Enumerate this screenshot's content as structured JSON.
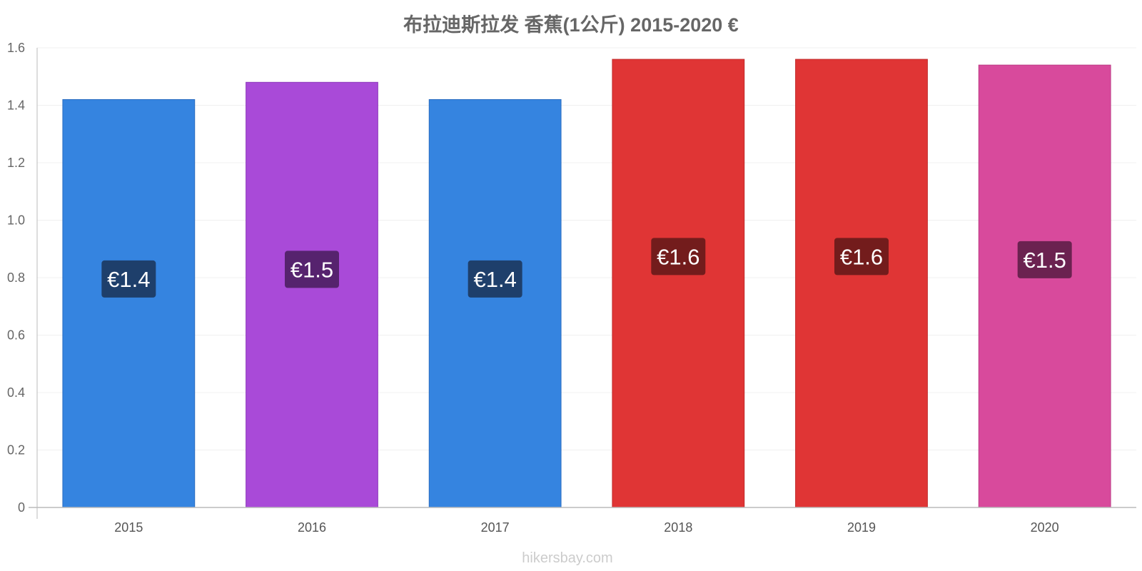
{
  "chart_data": {
    "type": "bar",
    "title": "布拉迪斯拉发 香蕉(1公斤) 2015-2020 €",
    "categories": [
      "2015",
      "2016",
      "2017",
      "2018",
      "2019",
      "2020"
    ],
    "values": [
      1.42,
      1.48,
      1.42,
      1.56,
      1.56,
      1.54
    ],
    "data_labels": [
      "€1.4",
      "€1.5",
      "€1.4",
      "€1.6",
      "€1.6",
      "€1.5"
    ],
    "bar_colors": [
      "#3584e0",
      "#a94ad8",
      "#3584e0",
      "#e03535",
      "#e03535",
      "#d84a9c"
    ],
    "bar_edge_colors": [
      "#2a6cc0",
      "#8e3cbc",
      "#2a6cc0",
      "#c02a2a",
      "#c02a2a",
      "#bc3c84"
    ],
    "label_colors": [
      "#1e3f6b",
      "#56236e",
      "#1e3f6b",
      "#731c1c",
      "#731c1c",
      "#6b2250"
    ],
    "yticks": [
      "0",
      "0.2",
      "0.4",
      "0.6",
      "0.8",
      "1.0",
      "1.2",
      "1.4",
      "1.6"
    ],
    "ylim": [
      0,
      1.6
    ],
    "xlabel": "",
    "ylabel": "",
    "grid": true,
    "watermark": "hikersbay.com"
  }
}
